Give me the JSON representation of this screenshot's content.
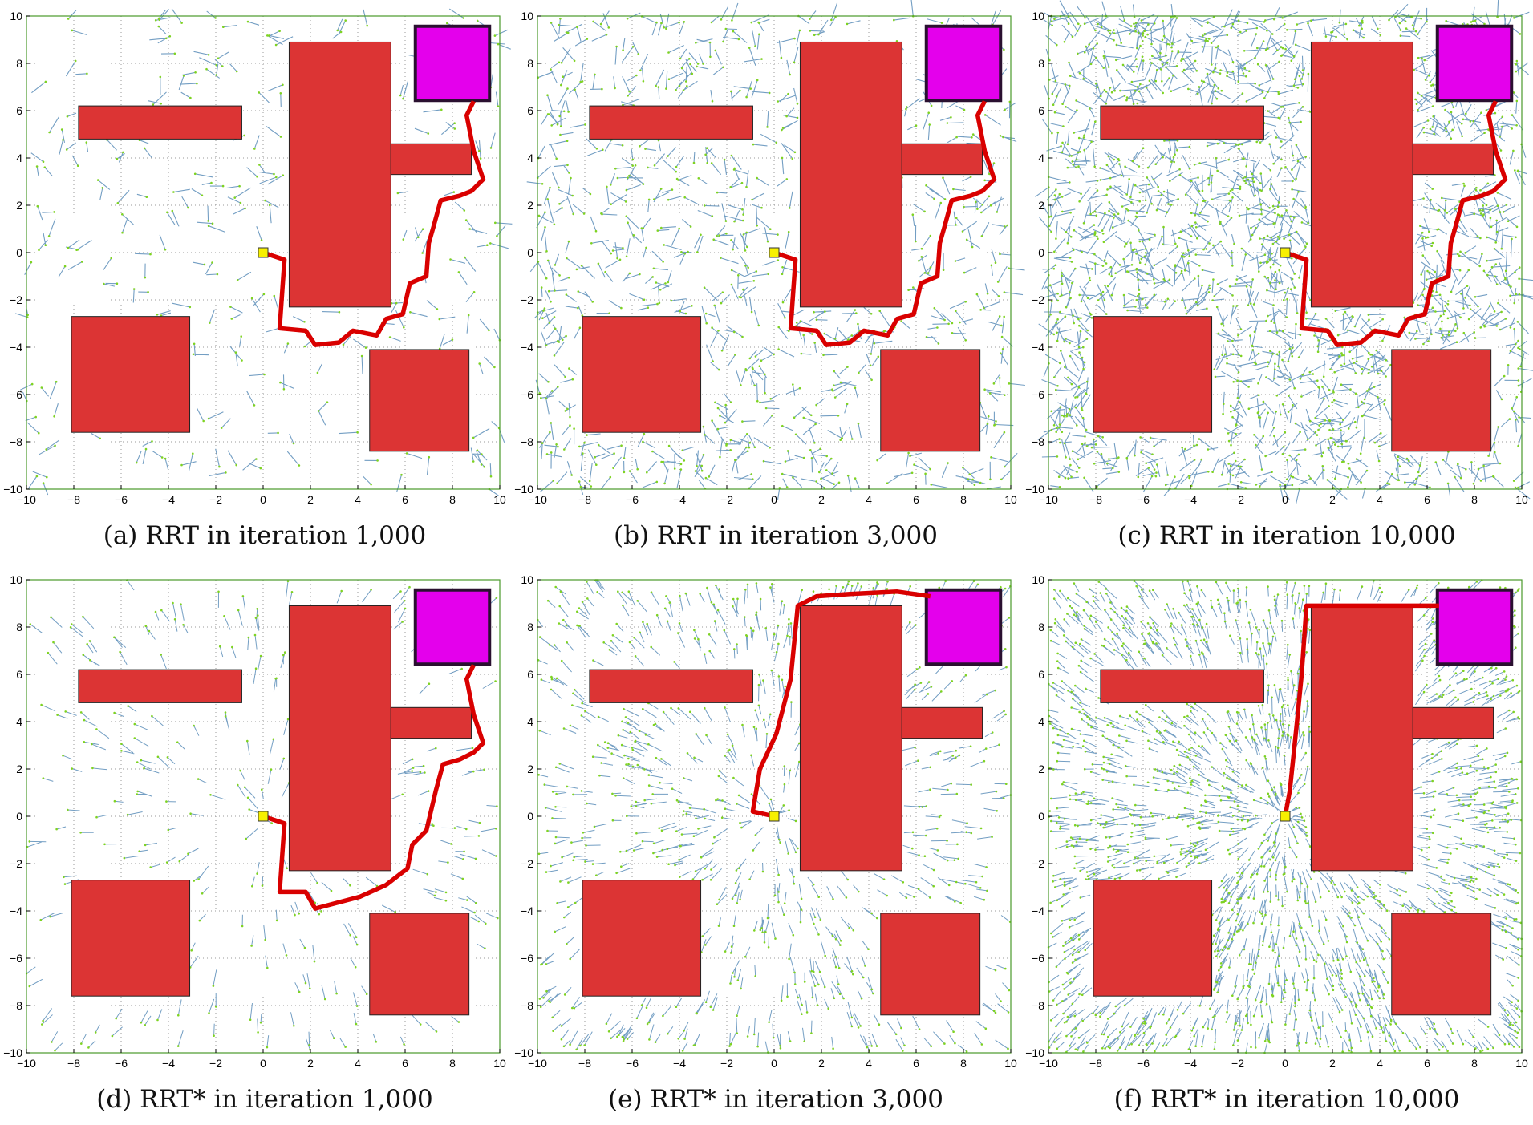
{
  "figure": {
    "panels": [
      {
        "caption": "(a) RRT in iteration 1,000",
        "algorithm": "RRT",
        "iteration": 1000,
        "path": "a"
      },
      {
        "caption": "(b) RRT in iteration 3,000",
        "algorithm": "RRT",
        "iteration": 3000,
        "path": "a"
      },
      {
        "caption": "(c) RRT in iteration 10,000",
        "algorithm": "RRT",
        "iteration": 10000,
        "path": "a"
      },
      {
        "caption": "(d) RRT* in iteration 1,000",
        "algorithm": "RRT*",
        "iteration": 1000,
        "path": "d"
      },
      {
        "caption": "(e) RRT* in iteration 3,000",
        "algorithm": "RRT*",
        "iteration": 3000,
        "path": "e"
      },
      {
        "caption": "(f) RRT* in iteration 10,000",
        "algorithm": "RRT*",
        "iteration": 10000,
        "path": "f"
      }
    ]
  },
  "chart_data": {
    "type": "scatter",
    "xlim": [
      -10,
      10
    ],
    "ylim": [
      -10,
      10
    ],
    "xticks": [
      "−10",
      "−8",
      "−6",
      "−4",
      "−2",
      "0",
      "2",
      "4",
      "6",
      "8",
      "10"
    ],
    "yticks": [
      "−10",
      "−8",
      "−6",
      "−4",
      "−2",
      "0",
      "2",
      "4",
      "6",
      "8",
      "10"
    ],
    "grid": true,
    "start": [
      0,
      0
    ],
    "goal_region": [
      [
        6.5,
        6.5
      ],
      [
        9.5,
        9.5
      ]
    ],
    "obstacles": [
      [
        [
          -7.8,
          4.8
        ],
        [
          -0.9,
          6.2
        ]
      ],
      [
        [
          1.1,
          -2.3
        ],
        [
          5.4,
          8.9
        ]
      ],
      [
        [
          5.4,
          3.3
        ],
        [
          8.8,
          4.6
        ]
      ],
      [
        [
          -8.1,
          -7.6
        ],
        [
          -3.1,
          -2.7
        ]
      ],
      [
        [
          4.5,
          -8.4
        ],
        [
          8.7,
          -4.1
        ]
      ]
    ],
    "paths": {
      "a": [
        [
          0,
          0
        ],
        [
          0.9,
          -0.3
        ],
        [
          0.7,
          -3.2
        ],
        [
          1.8,
          -3.3
        ],
        [
          2.2,
          -3.9
        ],
        [
          3.2,
          -3.8
        ],
        [
          3.8,
          -3.3
        ],
        [
          4.8,
          -3.5
        ],
        [
          5.2,
          -2.8
        ],
        [
          5.9,
          -2.6
        ],
        [
          6.2,
          -1.3
        ],
        [
          6.9,
          -1.0
        ],
        [
          7.0,
          0.4
        ],
        [
          7.2,
          1.1
        ],
        [
          7.5,
          2.2
        ],
        [
          8.3,
          2.4
        ],
        [
          8.8,
          2.6
        ],
        [
          9.3,
          3.1
        ],
        [
          8.9,
          4.3
        ],
        [
          8.6,
          5.8
        ],
        [
          8.9,
          6.4
        ]
      ],
      "d": [
        [
          0,
          0
        ],
        [
          0.9,
          -0.3
        ],
        [
          0.7,
          -3.2
        ],
        [
          1.8,
          -3.2
        ],
        [
          2.2,
          -3.9
        ],
        [
          4.1,
          -3.4
        ],
        [
          5.2,
          -2.9
        ],
        [
          6.1,
          -2.2
        ],
        [
          6.3,
          -1.2
        ],
        [
          6.9,
          -0.6
        ],
        [
          7.3,
          1.1
        ],
        [
          7.6,
          2.2
        ],
        [
          8.3,
          2.4
        ],
        [
          8.9,
          2.7
        ],
        [
          9.3,
          3.1
        ],
        [
          8.9,
          4.3
        ],
        [
          8.6,
          5.8
        ],
        [
          8.9,
          6.4
        ]
      ],
      "e": [
        [
          0,
          0
        ],
        [
          -0.9,
          0.2
        ],
        [
          -0.6,
          2.0
        ],
        [
          0.1,
          3.5
        ],
        [
          0.7,
          5.8
        ],
        [
          1.0,
          8.9
        ],
        [
          1.8,
          9.3
        ],
        [
          3.2,
          9.4
        ],
        [
          5.2,
          9.5
        ],
        [
          6.6,
          9.3
        ]
      ],
      "f": [
        [
          0,
          0
        ],
        [
          0.2,
          1.1
        ],
        [
          0.5,
          4.0
        ],
        [
          0.7,
          6.0
        ],
        [
          0.9,
          8.9
        ],
        [
          2.0,
          8.9
        ],
        [
          4.0,
          8.9
        ],
        [
          6.5,
          8.9
        ]
      ]
    }
  }
}
